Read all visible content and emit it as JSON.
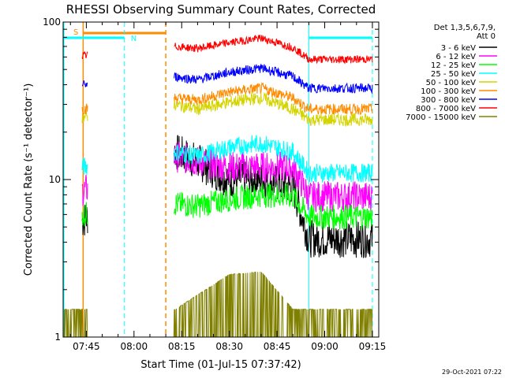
{
  "chart_data": {
    "type": "line",
    "title": "RHESSI Observing Summary Count Rates, Corrected",
    "xlabel": "Start Time (01-Jul-15 07:37:42)",
    "ylabel": "Corrected Count Rate (s⁻¹ detector⁻¹)",
    "x_range": [
      "07:37:42",
      "09:17:00"
    ],
    "ylim": [
      1,
      100
    ],
    "yscale": "log",
    "y_ticks": [
      "1",
      "10",
      "100"
    ],
    "x_ticks": [
      "07:45",
      "08:00",
      "08:15",
      "08:30",
      "08:45",
      "09:00",
      "09:15"
    ],
    "legend": {
      "header": [
        "Det 1,3,5,6,7,9,",
        "Att 0"
      ],
      "placement": "right"
    },
    "series": [
      {
        "name": "3 - 6 keV",
        "color": "#000000",
        "x": [
          "07:44",
          "08:13",
          "08:20",
          "08:30",
          "08:40",
          "08:50",
          "08:55",
          "09:15"
        ],
        "values": [
          5.5,
          15,
          13,
          10,
          10,
          9,
          4.2,
          4.2
        ]
      },
      {
        "name": "6 - 12 keV",
        "color": "#ff00ff",
        "x": [
          "07:44",
          "08:13",
          "08:20",
          "08:30",
          "08:40",
          "08:50",
          "08:55",
          "09:15"
        ],
        "values": [
          8.5,
          14,
          13,
          12,
          12,
          12,
          7.8,
          7.8
        ]
      },
      {
        "name": "12 - 25 keV",
        "color": "#00ff00",
        "x": [
          "07:44",
          "08:13",
          "08:20",
          "08:30",
          "08:40",
          "08:50",
          "08:55",
          "09:15"
        ],
        "values": [
          6,
          7,
          6.8,
          7.5,
          8,
          7.8,
          5.8,
          5.8
        ]
      },
      {
        "name": "25 - 50 keV",
        "color": "#00ffff",
        "x": [
          "07:44",
          "08:13",
          "08:20",
          "08:30",
          "08:40",
          "08:50",
          "08:55",
          "09:15"
        ],
        "values": [
          12,
          15,
          14,
          16,
          17,
          15,
          11,
          11
        ]
      },
      {
        "name": "50 - 100 keV",
        "color": "#d4d400",
        "x": [
          "07:44",
          "08:13",
          "08:20",
          "08:30",
          "08:40",
          "08:50",
          "08:55",
          "09:15"
        ],
        "values": [
          25,
          30,
          28,
          31,
          33,
          28,
          24,
          24
        ]
      },
      {
        "name": "100 - 300 keV",
        "color": "#ff8c00",
        "x": [
          "07:44",
          "08:13",
          "08:20",
          "08:30",
          "08:40",
          "08:50",
          "08:55",
          "09:15"
        ],
        "values": [
          28,
          33,
          32,
          36,
          38,
          33,
          28,
          28
        ]
      },
      {
        "name": "300 - 800 keV",
        "color": "#0000ff",
        "x": [
          "07:44",
          "08:13",
          "08:20",
          "08:30",
          "08:40",
          "08:50",
          "08:55",
          "09:15"
        ],
        "values": [
          40,
          45,
          43,
          48,
          51,
          45,
          38,
          38
        ]
      },
      {
        "name": "800 - 7000 keV",
        "color": "#ff0000",
        "x": [
          "07:44",
          "08:13",
          "08:20",
          "08:30",
          "08:40",
          "08:50",
          "08:55",
          "09:15"
        ],
        "values": [
          61,
          70,
          68,
          74,
          79,
          69,
          58,
          58
        ]
      },
      {
        "name": "7000 - 15000 keV",
        "color": "#808000",
        "x": [
          "07:38",
          "07:43",
          "08:13",
          "08:30",
          "08:40",
          "08:50",
          "08:55",
          "09:15"
        ],
        "values": [
          1.5,
          1.5,
          1.5,
          2.5,
          2.6,
          1.5,
          1.5,
          1.5
        ]
      }
    ],
    "annotations": [
      {
        "label": "S",
        "color": "#ff8c00",
        "x_start": "07:44",
        "x_end": "08:10"
      },
      {
        "label": "N",
        "color": "#00ffff",
        "x_start": "07:37:42",
        "x_end": "07:57"
      },
      {
        "label": "",
        "color": "#00ffff",
        "x_start": "08:55",
        "x_end": "09:15"
      }
    ],
    "grid": false
  },
  "footer": {
    "timestamp": "29-Oct-2021 07:22"
  }
}
